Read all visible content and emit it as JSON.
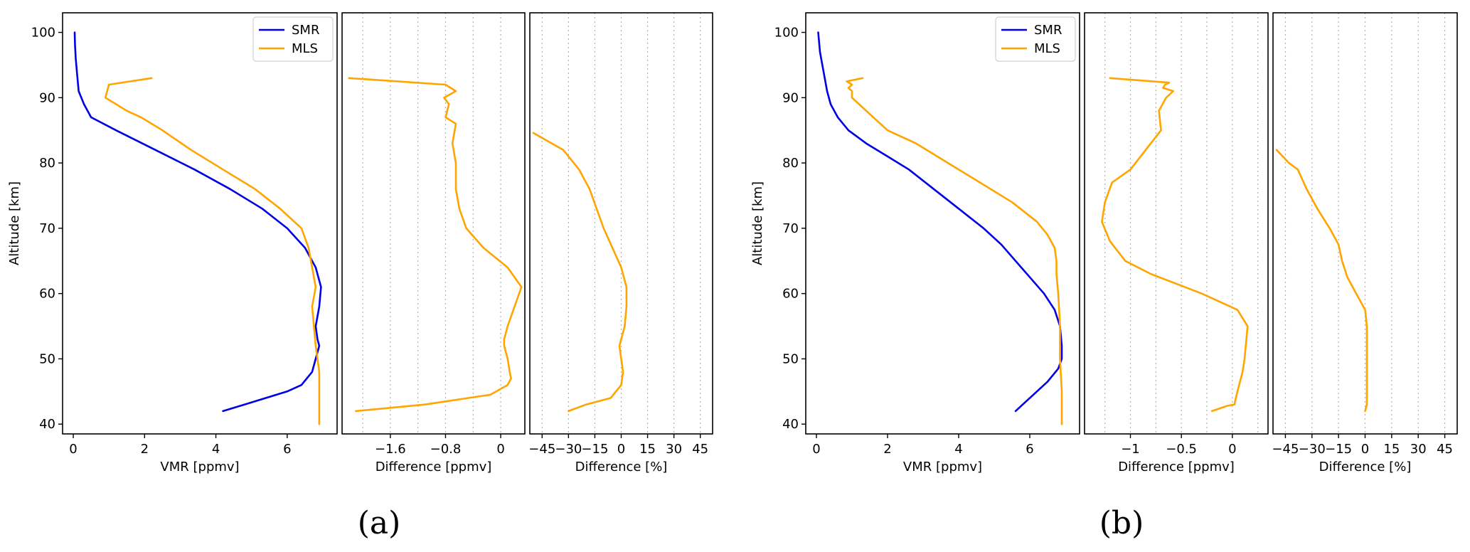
{
  "colors": {
    "SMR": "#0000e6",
    "MLS": "#ffa500",
    "grid": "#b0b0b0"
  },
  "panels": [
    {
      "caption": "(a)"
    },
    {
      "caption": "(b)"
    }
  ],
  "chart_data": [
    {
      "type": "line",
      "panel": "a",
      "xlabel": "VMR [ppmv]",
      "ylabel": "Altitude [km]",
      "xlim": [
        -0.3,
        7.4
      ],
      "ylim": [
        38.5,
        103
      ],
      "xticks": [
        0,
        2,
        4,
        6
      ],
      "yticks": [
        40,
        50,
        60,
        70,
        80,
        90,
        100
      ],
      "legend": "upper-right",
      "series": [
        {
          "name": "SMR",
          "color_key": "SMR",
          "x": [
            4.2,
            4.8,
            5.4,
            6.0,
            6.4,
            6.7,
            6.8,
            6.9,
            6.85,
            6.8,
            6.9,
            6.95,
            6.8,
            6.5,
            6.0,
            5.3,
            4.4,
            3.4,
            2.3,
            1.2,
            0.5,
            0.3,
            0.15,
            0.1,
            0.07,
            0.05,
            0.04
          ],
          "y": [
            42,
            43,
            44,
            45,
            46,
            48,
            50,
            52,
            53,
            55,
            58,
            61,
            64,
            67,
            70,
            73,
            76,
            79,
            82,
            85,
            87,
            89,
            91,
            94,
            96,
            98,
            100
          ]
        },
        {
          "name": "MLS",
          "color_key": "MLS",
          "x": [
            6.9,
            6.9,
            6.9,
            6.85,
            6.8,
            6.75,
            6.7,
            6.8,
            6.7,
            6.6,
            6.4,
            5.8,
            5.1,
            4.2,
            3.3,
            2.5,
            1.9,
            1.5,
            1.2,
            0.9,
            0.95,
            1.0,
            1.6,
            2.2
          ],
          "y": [
            40,
            44,
            48,
            50,
            52,
            55,
            58,
            61,
            64,
            67,
            70,
            73,
            76,
            79,
            82,
            85,
            87,
            88,
            89,
            90,
            91,
            92,
            92.5,
            93
          ]
        }
      ]
    },
    {
      "type": "line",
      "panel": "a",
      "xlabel": "Difference [ppmv]",
      "xlim": [
        -2.3,
        0.35
      ],
      "ylim": [
        38.5,
        103
      ],
      "xticks": [
        -1.6,
        -0.8,
        0.0
      ],
      "xgrid": [
        -2.0,
        -1.6,
        -1.2,
        -0.8,
        -0.4,
        0.0
      ],
      "series": [
        {
          "name": "MLS",
          "color_key": "MLS",
          "x": [
            -2.1,
            -1.6,
            -1.1,
            -0.6,
            -0.15,
            0.1,
            0.15,
            0.13,
            0.1,
            0.05,
            0.05,
            0.1,
            0.2,
            0.3,
            0.1,
            -0.25,
            -0.5,
            -0.6,
            -0.65,
            -0.65,
            -0.7,
            -0.65,
            -0.8,
            -0.75,
            -0.82,
            -0.65,
            -0.8,
            -2.2
          ],
          "y": [
            42,
            42.5,
            43,
            43.8,
            44.5,
            46,
            47,
            48,
            50,
            52,
            53,
            55,
            58,
            61,
            64,
            67,
            70,
            73,
            76,
            80,
            83,
            86,
            87,
            89,
            90,
            91,
            92,
            93
          ]
        }
      ]
    },
    {
      "type": "line",
      "panel": "a",
      "xlabel": "Difference [%]",
      "xlim": [
        -52,
        52
      ],
      "ylim": [
        38.5,
        103
      ],
      "xticks": [
        -45,
        -30,
        -15,
        0,
        15,
        30,
        45
      ],
      "xgrid": [
        -45,
        -30,
        -15,
        0,
        15,
        30,
        45
      ],
      "series": [
        {
          "name": "MLS",
          "color_key": "MLS",
          "x": [
            -30,
            -20,
            -6,
            0,
            1,
            0,
            -1,
            0,
            2,
            3,
            3,
            0,
            -5,
            -10,
            -14,
            -18,
            -24,
            -33,
            -50
          ],
          "y": [
            42,
            43,
            44,
            46,
            48,
            50,
            52,
            53,
            55,
            58,
            61,
            64,
            67,
            70,
            73,
            76,
            79,
            82,
            84.6
          ]
        }
      ]
    },
    {
      "type": "line",
      "panel": "b",
      "xlabel": "VMR [ppmv]",
      "ylabel": "Altitude [km]",
      "xlim": [
        -0.3,
        7.4
      ],
      "ylim": [
        38.5,
        103
      ],
      "xticks": [
        0,
        2,
        4,
        6
      ],
      "yticks": [
        40,
        50,
        60,
        70,
        80,
        90,
        100
      ],
      "legend": "upper-right",
      "series": [
        {
          "name": "SMR",
          "color_key": "SMR",
          "x": [
            5.6,
            5.8,
            6.1,
            6.5,
            6.8,
            6.9,
            6.9,
            6.85,
            6.7,
            6.4,
            6.0,
            5.6,
            5.2,
            4.7,
            4.0,
            3.3,
            2.6,
            2.0,
            1.4,
            0.9,
            0.6,
            0.4,
            0.3,
            0.2,
            0.1,
            0.05
          ],
          "y": [
            42,
            43,
            44.5,
            46.5,
            48.5,
            50,
            52,
            55,
            57.5,
            60,
            62.5,
            65,
            67.5,
            70,
            73,
            76,
            79,
            81,
            83,
            85,
            87,
            89,
            91,
            94,
            97,
            100
          ]
        },
        {
          "name": "MLS",
          "color_key": "MLS",
          "x": [
            6.9,
            6.9,
            6.85,
            6.85,
            6.8,
            6.75,
            6.75,
            6.7,
            6.5,
            6.2,
            5.5,
            4.6,
            3.7,
            2.8,
            2.0,
            1.6,
            1.2,
            1.0,
            1.0,
            0.9,
            1.0,
            0.85,
            1.3
          ],
          "y": [
            40,
            45,
            50,
            55,
            60,
            63,
            65,
            67,
            69,
            71,
            74,
            77,
            80,
            83,
            85,
            87,
            89,
            90,
            91,
            91.5,
            92,
            92.5,
            93
          ]
        }
      ]
    },
    {
      "type": "line",
      "panel": "b",
      "xlabel": "Difference [ppmv]",
      "xlim": [
        -1.45,
        0.35
      ],
      "ylim": [
        38.5,
        103
      ],
      "xticks": [
        -1.0,
        -0.5,
        0.0
      ],
      "xgrid": [
        -1.25,
        -1.0,
        -0.75,
        -0.5,
        -0.25,
        0.0,
        0.25
      ],
      "series": [
        {
          "name": "MLS",
          "color_key": "MLS",
          "x": [
            -0.2,
            -0.05,
            0.02,
            0.05,
            0.1,
            0.12,
            0.15,
            0.05,
            -0.3,
            -0.8,
            -1.05,
            -1.2,
            -1.28,
            -1.25,
            -1.18,
            -1.0,
            -0.85,
            -0.7,
            -0.72,
            -0.65,
            -0.58,
            -0.68,
            -0.66,
            -0.62,
            -1.2
          ],
          "y": [
            42,
            42.8,
            43,
            45,
            48,
            50,
            55,
            57.5,
            60,
            63,
            65,
            68,
            71,
            74,
            77,
            79,
            82,
            85,
            88,
            90,
            91,
            91.5,
            92,
            92.3,
            93
          ]
        }
      ]
    },
    {
      "type": "line",
      "panel": "b",
      "xlabel": "Difference [%]",
      "xlim": [
        -52,
        52
      ],
      "ylim": [
        38.5,
        103
      ],
      "xticks": [
        -45,
        -30,
        -15,
        0,
        15,
        30,
        45
      ],
      "xgrid": [
        -45,
        -30,
        -15,
        0,
        15,
        30,
        45
      ],
      "series": [
        {
          "name": "MLS",
          "color_key": "MLS",
          "x": [
            0,
            1,
            1,
            1,
            1,
            0,
            -5,
            -10,
            -13,
            -15,
            -20,
            -27,
            -33,
            -38,
            -43,
            -50
          ],
          "y": [
            42,
            43,
            45,
            50,
            55,
            57.5,
            60,
            62.5,
            65,
            67.5,
            70,
            73,
            76,
            79,
            80,
            82
          ]
        }
      ]
    }
  ]
}
